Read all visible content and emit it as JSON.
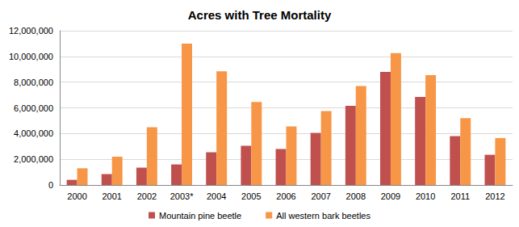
{
  "chart_data": {
    "type": "bar",
    "title": "Acres with Tree Mortality",
    "categories": [
      "2000",
      "2001",
      "2002",
      "2003*",
      "2004",
      "2005",
      "2006",
      "2007",
      "2008",
      "2009",
      "2010",
      "2011",
      "2012"
    ],
    "series": [
      {
        "name": "Mountain pine beetle",
        "color": "#c0504d",
        "values": [
          400000,
          850000,
          1350000,
          1600000,
          2550000,
          3050000,
          2800000,
          4050000,
          6150000,
          8800000,
          6850000,
          3800000,
          2350000
        ]
      },
      {
        "name": "All western bark beetles",
        "color": "#f79646",
        "values": [
          1300000,
          2200000,
          4500000,
          11000000,
          8850000,
          6450000,
          4550000,
          5750000,
          7700000,
          10250000,
          8550000,
          5200000,
          3650000
        ]
      }
    ],
    "ylim": [
      0,
      12000000
    ],
    "yticks": [
      0,
      {
        "value": 2000000,
        "label": "2,000,000"
      },
      {
        "value": 4000000,
        "label": "4,000,000"
      },
      {
        "value": 6000000,
        "label": "6,000,000"
      },
      {
        "value": 8000000,
        "label": "8,000,000"
      },
      {
        "value": 10000000,
        "label": "10,000,000"
      },
      {
        "value": 12000000,
        "label": "12,000,000"
      }
    ],
    "grid": true,
    "legend": "bottom"
  }
}
